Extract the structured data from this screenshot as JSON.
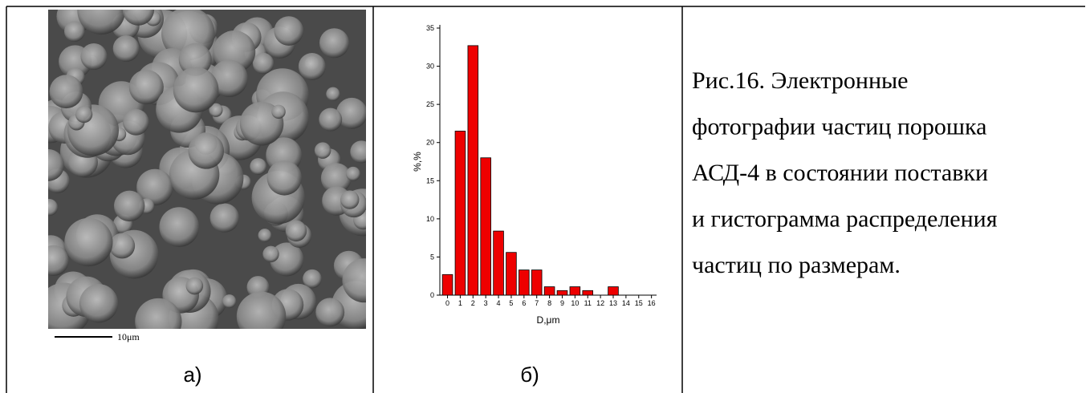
{
  "panel_a": {
    "scale_label": "10μm",
    "label": "а)"
  },
  "chart_data": {
    "type": "bar",
    "x": [
      0,
      1,
      2,
      3,
      4,
      5,
      6,
      7,
      8,
      9,
      10,
      11,
      12,
      13
    ],
    "values": [
      2.7,
      21.5,
      32.7,
      18,
      8.4,
      5.6,
      3.3,
      3.3,
      1.1,
      0.6,
      1.1,
      0.6,
      0,
      1.1
    ],
    "color": "#ee0000",
    "xlabel": "D,μm",
    "ylabel": "%,%",
    "xlim": [
      -0.6,
      16.4
    ],
    "xticks": [
      0,
      1,
      2,
      3,
      4,
      5,
      6,
      7,
      8,
      9,
      10,
      11,
      12,
      13,
      14,
      15,
      16
    ],
    "ylim": [
      0,
      35
    ],
    "yticks": [
      0,
      5,
      10,
      15,
      20,
      25,
      30,
      35
    ],
    "grid": false
  },
  "panel_b": {
    "label": "б)"
  },
  "caption": {
    "lines": [
      "Рис.16. Электронные",
      "фотографии частиц порошка",
      "АСД-4 в состоянии поставки",
      "и гистограмма распределения",
      "частиц по размерам."
    ]
  }
}
